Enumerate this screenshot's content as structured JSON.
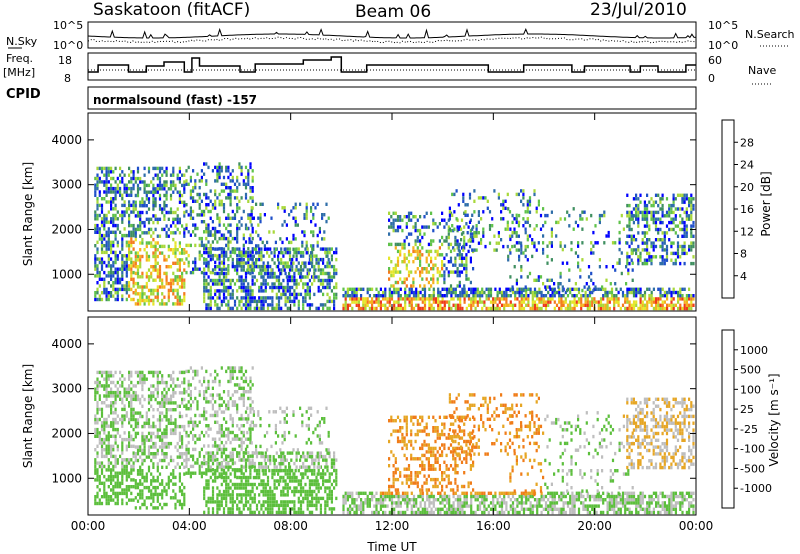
{
  "header": {
    "station": "Saskatoon (fitACF)",
    "beam": "Beam 06",
    "date": "23/Jul/2010"
  },
  "strip_labels": {
    "nsky": "N.Sky",
    "nsearch": "N.Search",
    "freq_line1": "Freq.",
    "freq_line2": "[MHz]",
    "nave": "Nave",
    "cpid": "CPID",
    "cpid_text": "normalsound (fast) -157",
    "noise_ticks_left": [
      "10^5",
      "10^0"
    ],
    "noise_ticks_right": [
      "10^5",
      "10^0"
    ],
    "freq_ticks": [
      "18",
      "8"
    ],
    "nave_ticks": [
      "60",
      "0"
    ]
  },
  "chart_data": [
    {
      "type": "heatmap",
      "title": "",
      "xlabel": "Time UT",
      "ylabel": "Slant Range [km]",
      "x_ticks": [
        "00:00",
        "04:00",
        "08:00",
        "12:00",
        "16:00",
        "20:00",
        "00:00"
      ],
      "x_range_hours": [
        0,
        24
      ],
      "y_ticks": [
        "1000",
        "2000",
        "3000",
        "4000"
      ],
      "ylim": [
        180,
        4600
      ],
      "colorbar_label": "Power [dB]",
      "colorbar_ticks": [
        "28",
        "24",
        "20",
        "16",
        "12",
        "8",
        "4"
      ],
      "colorbar_colors": [
        "#0000ff",
        "#1e4fc8",
        "#2f6ea8",
        "#3f8f60",
        "#5fc24a",
        "#a8d83a",
        "#e6e62a",
        "#f5b21e",
        "#f47a1e",
        "#ee3a1a",
        "#e01010"
      ]
    },
    {
      "type": "heatmap",
      "title": "",
      "xlabel": "Time UT",
      "ylabel": "Slant Range [km]",
      "x_ticks": [
        "00:00",
        "04:00",
        "08:00",
        "12:00",
        "16:00",
        "20:00",
        "00:00"
      ],
      "x_range_hours": [
        0,
        24
      ],
      "y_ticks": [
        "1000",
        "2000",
        "3000",
        "4000"
      ],
      "ylim": [
        180,
        4600
      ],
      "colorbar_label": "Velocity [m s⁻¹]",
      "colorbar_ticks": [
        "1000",
        "500",
        "100",
        "25",
        "-25",
        "-100",
        "-500",
        "-1000"
      ],
      "colorbar_colors": [
        "#2030c8",
        "#2e6a9e",
        "#3d8a5a",
        "#5cbf3c",
        "#bebebe",
        "#e6a624",
        "#f07c18",
        "#f0561a",
        "#e01010"
      ]
    }
  ],
  "axes": {
    "xlabel": "Time UT"
  }
}
